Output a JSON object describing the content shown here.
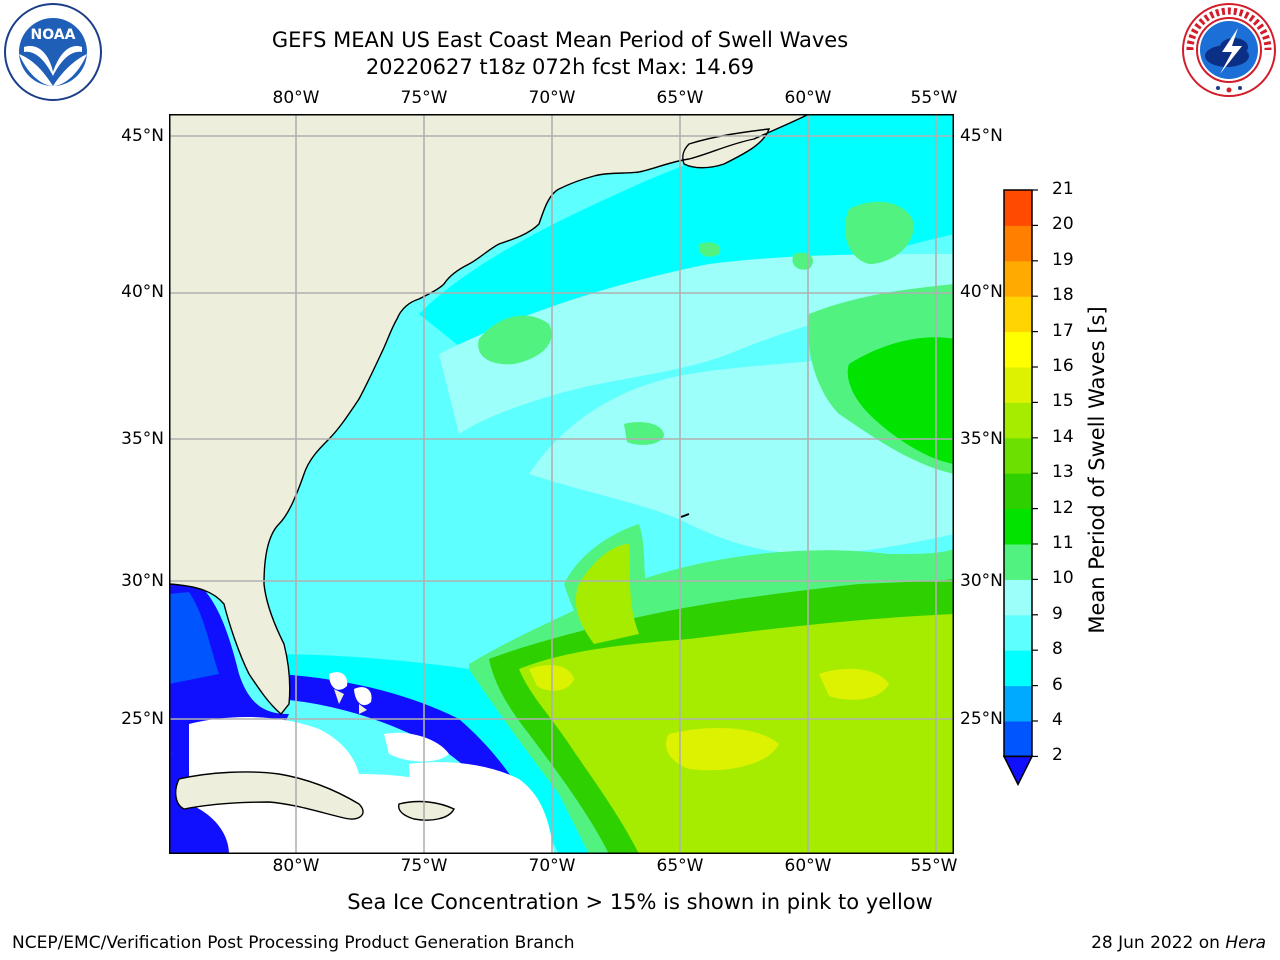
{
  "title_line1": "GEFS MEAN US East Coast Mean Period of Swell Waves",
  "title_line2": "20220627 t18z 072h fcst   Max: 14.69",
  "lon_labels": [
    "80°W",
    "75°W",
    "70°W",
    "65°W",
    "60°W",
    "55°W"
  ],
  "lat_labels": [
    "45°N",
    "40°N",
    "35°N",
    "30°N",
    "25°N"
  ],
  "colorbar": {
    "label": "Mean Period of Swell Waves [s]",
    "ticks": [
      "2",
      "4",
      "6",
      "8",
      "9",
      "10",
      "11",
      "12",
      "13",
      "14",
      "15",
      "16",
      "17",
      "18",
      "19",
      "20",
      "21"
    ],
    "colors": [
      "#0055ff",
      "#00aaff",
      "#00ffff",
      "#5dffff",
      "#9cfff9",
      "#52f280",
      "#00e400",
      "#2ed000",
      "#6ce000",
      "#a6ec00",
      "#dcf200",
      "#ffff00",
      "#ffd400",
      "#ffaa00",
      "#ff7f00",
      "#ff4a00",
      "#ff0000"
    ],
    "extend_color": "#1010ff"
  },
  "note": "Sea Ice Concentration > 15% is shown in pink to yellow",
  "footer_left": "NCEP/EMC/Verification Post Processing Product Generation Branch",
  "footer_date": "28 Jun 2022 on",
  "footer_machine": "Hera",
  "colors": {
    "land": "#eeeedc",
    "gridline": "#b0b0b0",
    "coast": "#000000",
    "no_data": "#ffffff"
  }
}
